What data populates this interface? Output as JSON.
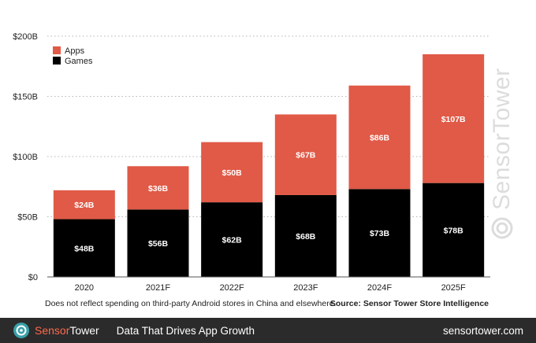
{
  "chart_data": {
    "type": "bar",
    "stacked": true,
    "categories": [
      "2020",
      "2021F",
      "2022F",
      "2023F",
      "2024F",
      "2025F"
    ],
    "series": [
      {
        "name": "Games",
        "color": "#000000",
        "values": [
          48,
          56,
          62,
          68,
          73,
          78
        ],
        "labels": [
          "$48B",
          "$56B",
          "$62B",
          "$68B",
          "$73B",
          "$78B"
        ]
      },
      {
        "name": "Apps",
        "color": "#e05a47",
        "values": [
          24,
          36,
          50,
          67,
          86,
          107
        ],
        "labels": [
          "$24B",
          "$36B",
          "$50B",
          "$67B",
          "$86B",
          "$107B"
        ]
      }
    ],
    "ylim": [
      0,
      200
    ],
    "yticks": [
      0,
      50,
      100,
      150,
      200
    ],
    "ytick_labels": [
      "$0",
      "$50B",
      "$100B",
      "$150B",
      "$200B"
    ],
    "grid": true,
    "legend_position": "top-left"
  },
  "footnote": "Does not reflect spending on third-party Android stores in China and elsewhere.",
  "source": "Source: Sensor Tower Store Intelligence",
  "watermark": {
    "brand_part1": "Sensor",
    "brand_part2": "Tower"
  },
  "footer": {
    "brand_part1": "Sensor",
    "brand_part2": "Tower",
    "tagline": "Data That Drives App Growth",
    "site": "sensortower.com",
    "logo_icon": "sensortower-logo-icon"
  }
}
